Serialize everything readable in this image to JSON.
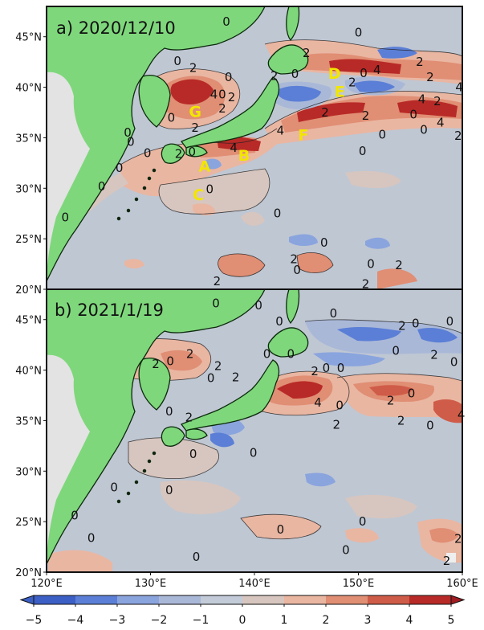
{
  "panels": [
    {
      "title": "a) 2020/12/10",
      "site_labels": [
        {
          "name": "A",
          "lon": 135.2,
          "lat": 32.2
        },
        {
          "name": "B",
          "lon": 139.0,
          "lat": 33.3
        },
        {
          "name": "C",
          "lon": 134.6,
          "lat": 29.4
        },
        {
          "name": "D",
          "lon": 147.7,
          "lat": 41.4
        },
        {
          "name": "E",
          "lon": 148.2,
          "lat": 39.6
        },
        {
          "name": "F",
          "lon": 144.7,
          "lat": 35.3
        },
        {
          "name": "G",
          "lon": 134.3,
          "lat": 37.6
        }
      ],
      "contour_labels": [
        {
          "t": "0",
          "lon": 137.3,
          "lat": 46.5
        },
        {
          "t": "0",
          "lon": 132.6,
          "lat": 42.6
        },
        {
          "t": "2",
          "lon": 134.1,
          "lat": 41.9
        },
        {
          "t": "0",
          "lon": 137.5,
          "lat": 41.0
        },
        {
          "t": "4",
          "lon": 136.1,
          "lat": 39.3
        },
        {
          "t": "0",
          "lon": 136.9,
          "lat": 39.3
        },
        {
          "t": "2",
          "lon": 137.8,
          "lat": 39.0
        },
        {
          "t": "2",
          "lon": 136.9,
          "lat": 37.9
        },
        {
          "t": "2",
          "lon": 134.3,
          "lat": 36.0
        },
        {
          "t": "0",
          "lon": 132.0,
          "lat": 37.0
        },
        {
          "t": "0",
          "lon": 127.8,
          "lat": 35.5
        },
        {
          "t": "2",
          "lon": 141.9,
          "lat": 41.1
        },
        {
          "t": "0",
          "lon": 143.9,
          "lat": 41.3
        },
        {
          "t": "2",
          "lon": 145.0,
          "lat": 43.4
        },
        {
          "t": "0",
          "lon": 150.0,
          "lat": 45.4
        },
        {
          "t": "0",
          "lon": 150.5,
          "lat": 41.4
        },
        {
          "t": "4",
          "lon": 151.8,
          "lat": 41.7
        },
        {
          "t": "2",
          "lon": 149.4,
          "lat": 40.5
        },
        {
          "t": "2",
          "lon": 155.9,
          "lat": 42.5
        },
        {
          "t": "2",
          "lon": 156.9,
          "lat": 41.0
        },
        {
          "t": "4",
          "lon": 159.7,
          "lat": 40.0
        },
        {
          "t": "2",
          "lon": 150.7,
          "lat": 37.2
        },
        {
          "t": "4",
          "lon": 156.1,
          "lat": 38.8
        },
        {
          "t": "2",
          "lon": 157.6,
          "lat": 38.6
        },
        {
          "t": "0",
          "lon": 155.3,
          "lat": 37.3
        },
        {
          "t": "0",
          "lon": 156.3,
          "lat": 35.8
        },
        {
          "t": "4",
          "lon": 157.9,
          "lat": 36.5
        },
        {
          "t": "2",
          "lon": 159.6,
          "lat": 35.2
        },
        {
          "t": "2",
          "lon": 146.8,
          "lat": 37.5
        },
        {
          "t": "4",
          "lon": 142.5,
          "lat": 35.7
        },
        {
          "t": "0",
          "lon": 152.3,
          "lat": 35.3
        },
        {
          "t": "4",
          "lon": 138.0,
          "lat": 34.0
        },
        {
          "t": "0",
          "lon": 134.0,
          "lat": 33.6
        },
        {
          "t": "2",
          "lon": 132.7,
          "lat": 33.4
        },
        {
          "t": "0",
          "lon": 129.7,
          "lat": 33.5
        },
        {
          "t": "0",
          "lon": 128.1,
          "lat": 34.6
        },
        {
          "t": "0",
          "lon": 127.0,
          "lat": 32.0
        },
        {
          "t": "0",
          "lon": 125.3,
          "lat": 30.2
        },
        {
          "t": "0",
          "lon": 121.8,
          "lat": 27.1
        },
        {
          "t": "0",
          "lon": 135.7,
          "lat": 29.9
        },
        {
          "t": "0",
          "lon": 142.2,
          "lat": 27.5
        },
        {
          "t": "0",
          "lon": 144.1,
          "lat": 21.9
        },
        {
          "t": "0",
          "lon": 150.4,
          "lat": 33.7
        },
        {
          "t": "0",
          "lon": 146.7,
          "lat": 24.6
        },
        {
          "t": "0",
          "lon": 151.2,
          "lat": 22.5
        },
        {
          "t": "2",
          "lon": 153.9,
          "lat": 22.4
        },
        {
          "t": "2",
          "lon": 143.8,
          "lat": 23.0
        },
        {
          "t": "2",
          "lon": 136.4,
          "lat": 20.8
        },
        {
          "t": "2",
          "lon": 150.7,
          "lat": 20.5
        }
      ]
    },
    {
      "title": "b) 2021/1/19",
      "site_labels": [],
      "contour_labels": [
        {
          "t": "0",
          "lon": 136.3,
          "lat": 46.6
        },
        {
          "t": "0",
          "lon": 140.4,
          "lat": 46.4
        },
        {
          "t": "0",
          "lon": 142.4,
          "lat": 44.8
        },
        {
          "t": "0",
          "lon": 147.6,
          "lat": 45.6
        },
        {
          "t": "2",
          "lon": 154.2,
          "lat": 44.4
        },
        {
          "t": "0",
          "lon": 155.5,
          "lat": 44.6
        },
        {
          "t": "0",
          "lon": 158.8,
          "lat": 44.8
        },
        {
          "t": "0",
          "lon": 153.6,
          "lat": 41.9
        },
        {
          "t": "2",
          "lon": 157.3,
          "lat": 41.5
        },
        {
          "t": "0",
          "lon": 159.2,
          "lat": 40.8
        },
        {
          "t": "2",
          "lon": 133.8,
          "lat": 41.6
        },
        {
          "t": "2",
          "lon": 130.5,
          "lat": 40.6
        },
        {
          "t": "0",
          "lon": 131.9,
          "lat": 40.9
        },
        {
          "t": "0",
          "lon": 135.8,
          "lat": 39.2
        },
        {
          "t": "2",
          "lon": 136.5,
          "lat": 40.4
        },
        {
          "t": "2",
          "lon": 138.2,
          "lat": 39.3
        },
        {
          "t": "0",
          "lon": 141.2,
          "lat": 41.6
        },
        {
          "t": "0",
          "lon": 143.5,
          "lat": 41.6
        },
        {
          "t": "2",
          "lon": 145.8,
          "lat": 39.9
        },
        {
          "t": "0",
          "lon": 146.9,
          "lat": 40.2
        },
        {
          "t": "0",
          "lon": 148.3,
          "lat": 40.2
        },
        {
          "t": "4",
          "lon": 146.1,
          "lat": 36.8
        },
        {
          "t": "0",
          "lon": 148.2,
          "lat": 36.5
        },
        {
          "t": "2",
          "lon": 147.9,
          "lat": 34.6
        },
        {
          "t": "2",
          "lon": 153.1,
          "lat": 37.0
        },
        {
          "t": "0",
          "lon": 155.1,
          "lat": 37.7
        },
        {
          "t": "2",
          "lon": 154.1,
          "lat": 35.0
        },
        {
          "t": "4",
          "lon": 159.9,
          "lat": 35.6
        },
        {
          "t": "0",
          "lon": 156.9,
          "lat": 34.5
        },
        {
          "t": "2",
          "lon": 133.7,
          "lat": 35.3
        },
        {
          "t": "0",
          "lon": 131.8,
          "lat": 35.9
        },
        {
          "t": "0",
          "lon": 134.1,
          "lat": 31.7
        },
        {
          "t": "0",
          "lon": 139.9,
          "lat": 31.8
        },
        {
          "t": "0",
          "lon": 126.5,
          "lat": 28.4
        },
        {
          "t": "0",
          "lon": 131.8,
          "lat": 28.1
        },
        {
          "t": "0",
          "lon": 122.7,
          "lat": 25.6
        },
        {
          "t": "0",
          "lon": 124.3,
          "lat": 23.4
        },
        {
          "t": "0",
          "lon": 134.4,
          "lat": 21.5
        },
        {
          "t": "0",
          "lon": 142.5,
          "lat": 24.2
        },
        {
          "t": "0",
          "lon": 150.4,
          "lat": 25.0
        },
        {
          "t": "0",
          "lon": 148.8,
          "lat": 22.2
        },
        {
          "t": "2",
          "lon": 159.6,
          "lat": 23.3
        },
        {
          "t": "2",
          "lon": 158.5,
          "lat": 21.1
        }
      ]
    }
  ],
  "axes": {
    "lat_ticks": [
      "20°N",
      "25°N",
      "30°N",
      "35°N",
      "40°N",
      "45°N"
    ],
    "lon_ticks": [
      "120°E",
      "130°E",
      "140°E",
      "150°E",
      "160°E"
    ]
  },
  "colorbar": {
    "ticks": [
      "−5",
      "−4",
      "−3",
      "−2",
      "−1",
      "0",
      "1",
      "2",
      "3",
      "4",
      "5"
    ],
    "colors": [
      "#3b5fc4",
      "#5b7fd6",
      "#8aa4de",
      "#aab8d8",
      "#c3cbd8",
      "#d7c6bf",
      "#e9b6a2",
      "#e08e74",
      "#cf5c48",
      "#b82a27"
    ],
    "under_color": "#3b5fc4",
    "over_color": "#9f1c22"
  },
  "colors": {
    "sea": "#bfc7d3",
    "land": "#7fd77c",
    "mainland_gray": "#e3e3e3",
    "site_label": "#f2e600"
  }
}
